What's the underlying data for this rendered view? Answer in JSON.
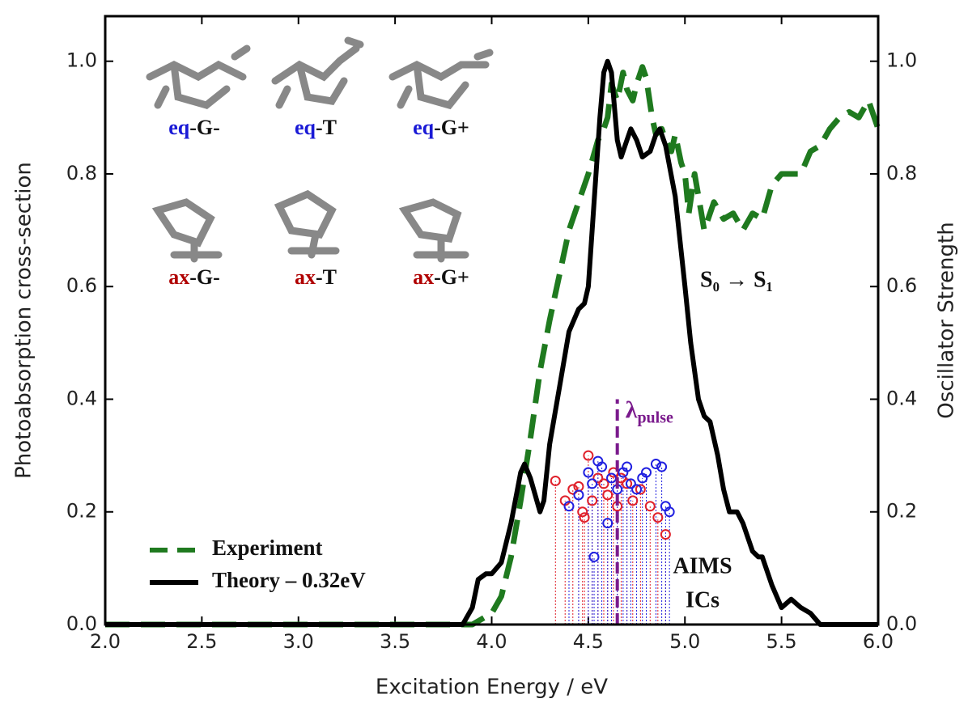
{
  "chart_data": {
    "type": "line",
    "xlabel": "Excitation Energy / eV",
    "ylabel": "Photoabsorption cross-section",
    "y2label": "Oscillator Strength",
    "xlim": [
      2.0,
      6.0
    ],
    "ylim": [
      0,
      1.08
    ],
    "y2lim": [
      0,
      1.08
    ],
    "xticks": [
      {
        "value": 2.0,
        "label": "2.0"
      },
      {
        "value": 2.5,
        "label": "2.5"
      },
      {
        "value": 3.0,
        "label": "3.0"
      },
      {
        "value": 3.5,
        "label": "3.5"
      },
      {
        "value": 4.0,
        "label": "4.0"
      },
      {
        "value": 4.5,
        "label": "4.5"
      },
      {
        "value": 5.0,
        "label": "5.0"
      },
      {
        "value": 5.5,
        "label": "5.5"
      },
      {
        "value": 6.0,
        "label": "6.0"
      }
    ],
    "yticks": [
      {
        "value": 0,
        "label": "0.0"
      },
      {
        "value": 0.2,
        "label": "0.2"
      },
      {
        "value": 0.4,
        "label": "0.4"
      },
      {
        "value": 0.6,
        "label": "0.6"
      },
      {
        "value": 0.8,
        "label": "0.8"
      },
      {
        "value": 1.0,
        "label": "1.0"
      }
    ],
    "y2ticks": [
      {
        "value": 0,
        "label": "0.0"
      },
      {
        "value": 0.2,
        "label": "0.2"
      },
      {
        "value": 0.4,
        "label": "0.4"
      },
      {
        "value": 0.6,
        "label": "0.6"
      },
      {
        "value": 0.8,
        "label": "0.8"
      },
      {
        "value": 1.0,
        "label": "1.0"
      }
    ],
    "legend": "lower left",
    "series": [
      {
        "name": "Experiment",
        "color": "#1f7a1f",
        "dashed": true,
        "x": [
          2.0,
          3.9,
          4.0,
          4.05,
          4.1,
          4.15,
          4.2,
          4.25,
          4.3,
          4.35,
          4.4,
          4.45,
          4.5,
          4.55,
          4.58,
          4.6,
          4.62,
          4.65,
          4.68,
          4.7,
          4.73,
          4.75,
          4.78,
          4.8,
          4.83,
          4.85,
          4.88,
          4.9,
          4.93,
          4.95,
          4.98,
          5.0,
          5.02,
          5.05,
          5.08,
          5.1,
          5.15,
          5.2,
          5.25,
          5.3,
          5.35,
          5.4,
          5.45,
          5.5,
          5.55,
          5.6,
          5.65,
          5.7,
          5.75,
          5.8,
          5.85,
          5.9,
          5.95,
          6.0
        ],
        "values": [
          0,
          0,
          0.02,
          0.05,
          0.12,
          0.22,
          0.33,
          0.45,
          0.54,
          0.62,
          0.7,
          0.75,
          0.8,
          0.86,
          0.88,
          0.9,
          0.96,
          0.93,
          0.98,
          0.95,
          0.93,
          0.96,
          0.99,
          0.97,
          0.9,
          0.87,
          0.88,
          0.86,
          0.84,
          0.87,
          0.82,
          0.8,
          0.73,
          0.8,
          0.74,
          0.7,
          0.75,
          0.72,
          0.73,
          0.7,
          0.73,
          0.72,
          0.78,
          0.8,
          0.8,
          0.8,
          0.84,
          0.85,
          0.88,
          0.9,
          0.91,
          0.9,
          0.93,
          0.88
        ]
      },
      {
        "name": "Theory – 0.32eV",
        "color": "#000000",
        "dashed": false,
        "x": [
          2.0,
          3.85,
          3.9,
          3.93,
          3.97,
          4.0,
          4.05,
          4.1,
          4.15,
          4.17,
          4.2,
          4.25,
          4.27,
          4.3,
          4.35,
          4.4,
          4.45,
          4.48,
          4.5,
          4.53,
          4.56,
          4.58,
          4.6,
          4.62,
          4.65,
          4.67,
          4.7,
          4.72,
          4.75,
          4.78,
          4.82,
          4.85,
          4.87,
          4.9,
          4.95,
          5.0,
          5.03,
          5.07,
          5.1,
          5.13,
          5.17,
          5.2,
          5.23,
          5.27,
          5.3,
          5.35,
          5.38,
          5.4,
          5.45,
          5.5,
          5.55,
          5.6,
          5.65,
          5.7,
          6.0
        ],
        "values": [
          0,
          0,
          0.03,
          0.08,
          0.09,
          0.09,
          0.11,
          0.18,
          0.27,
          0.285,
          0.26,
          0.2,
          0.22,
          0.32,
          0.42,
          0.52,
          0.56,
          0.57,
          0.6,
          0.75,
          0.9,
          0.98,
          1.0,
          0.98,
          0.86,
          0.83,
          0.86,
          0.88,
          0.86,
          0.83,
          0.84,
          0.87,
          0.88,
          0.85,
          0.76,
          0.6,
          0.5,
          0.4,
          0.37,
          0.36,
          0.3,
          0.24,
          0.2,
          0.2,
          0.18,
          0.13,
          0.12,
          0.12,
          0.07,
          0.03,
          0.045,
          0.03,
          0.02,
          0,
          0
        ]
      }
    ],
    "ics": [
      {
        "color": "#e0202a",
        "axis": "y2",
        "x": [
          4.33,
          4.38,
          4.42,
          4.45,
          4.47,
          4.5,
          4.52,
          4.55,
          4.58,
          4.6,
          4.63,
          4.65,
          4.67,
          4.7,
          4.73,
          4.77,
          4.82,
          4.86,
          4.9,
          4.48
        ],
        "values": [
          0.255,
          0.22,
          0.24,
          0.245,
          0.2,
          0.3,
          0.22,
          0.26,
          0.25,
          0.23,
          0.27,
          0.21,
          0.26,
          0.25,
          0.22,
          0.24,
          0.21,
          0.19,
          0.16,
          0.19
        ]
      },
      {
        "color": "#2020e0",
        "axis": "y2",
        "x": [
          4.4,
          4.45,
          4.5,
          4.52,
          4.55,
          4.57,
          4.6,
          4.62,
          4.65,
          4.68,
          4.7,
          4.72,
          4.75,
          4.8,
          4.85,
          4.88,
          4.9,
          4.92,
          4.53,
          4.78
        ],
        "values": [
          0.21,
          0.23,
          0.27,
          0.25,
          0.29,
          0.28,
          0.18,
          0.26,
          0.24,
          0.27,
          0.28,
          0.25,
          0.24,
          0.27,
          0.285,
          0.28,
          0.21,
          0.2,
          0.12,
          0.26
        ]
      }
    ],
    "pulse": {
      "x": 4.65,
      "top": 0.4,
      "color": "#7a1a8c",
      "symbol": "λ",
      "subscript": "pulse"
    },
    "annotations": {
      "transition": "S₀ → S₁",
      "ics_label": [
        "AIMS",
        "ICs"
      ]
    },
    "conformers": [
      {
        "prefix": "eq",
        "suffix": "-G-",
        "color": "#1a1ad6"
      },
      {
        "prefix": "eq",
        "suffix": "-T",
        "color": "#1a1ad6"
      },
      {
        "prefix": "eq",
        "suffix": "-G+",
        "color": "#1a1ad6"
      },
      {
        "prefix": "ax",
        "suffix": "-G-",
        "color": "#b00000"
      },
      {
        "prefix": "ax",
        "suffix": "-T",
        "color": "#b00000"
      },
      {
        "prefix": "ax",
        "suffix": "-G+",
        "color": "#b00000"
      }
    ]
  }
}
